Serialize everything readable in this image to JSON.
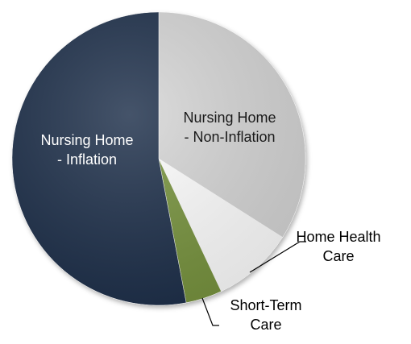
{
  "chart_data": {
    "type": "pie",
    "categories": [
      "Nursing Home\n- Non-Inflation",
      "Home Health\nCare",
      "Short-Term\nCare",
      "Nursing Home\n- Inflation"
    ],
    "values": [
      34,
      9,
      4,
      53
    ],
    "colors": [
      "#d6d6d6",
      "#ffffff",
      "#77933c",
      "#1c2d4a"
    ],
    "label_colors": [
      "#1a1a1a",
      "#000000",
      "#000000",
      "#ffffff"
    ],
    "start_angle": 0,
    "direction": "clockwise"
  }
}
